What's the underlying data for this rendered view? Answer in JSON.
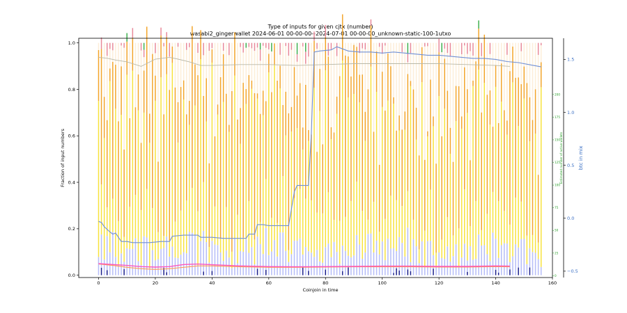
{
  "chart_data": {
    "type": "bar",
    "title": "Type of inputs for given cjtx (number)",
    "subtitle": "wasabi2_gingerwallet 2024-06-01 00-00-00--2024-07-01 00-00-00_unknown-static-100-1utxo",
    "xlabel": "Coinjoin in time",
    "ylabel": "Fraction of input numbers",
    "y2label": "Estimated number of active wallets",
    "y3label": "btc in mix",
    "xlim": [
      -7,
      160
    ],
    "ylim": [
      -0.01,
      1.02
    ],
    "y2lim": [
      -2,
      262
    ],
    "y3lim": [
      -0.56,
      1.7
    ],
    "x_ticks": [
      0,
      20,
      40,
      60,
      80,
      100,
      120,
      140,
      160
    ],
    "y_ticks": [
      0.0,
      0.2,
      0.4,
      0.6,
      0.8,
      1.0
    ],
    "y2_ticks": [
      0,
      25,
      50,
      75,
      100,
      125,
      150,
      175,
      200
    ],
    "y3_ticks": [
      -0.5,
      0.0,
      0.5,
      1.0,
      1.5
    ],
    "n_coinjoins": 157,
    "stack_colors": {
      "fresh_inputs_blue": "#b5bcf7",
      "fresh_dark": "#1a1f8c",
      "yellow": "#f7e23c",
      "orange": "#f3a52a",
      "light": "#fdeed8",
      "pink": "#e88a9a",
      "green": "#3fb04f"
    },
    "line_colors": {
      "btc_in_mix": "#6f8fd4",
      "wallets": "#b8b8a8",
      "pink_line": "#ff55bb",
      "orange_line": "#ff9955"
    },
    "btc_in_mix": {
      "x": [
        0,
        1,
        2,
        4,
        5,
        6,
        7,
        8,
        10,
        12,
        15,
        18,
        22,
        25,
        26,
        30,
        35,
        36,
        40,
        44,
        48,
        52,
        53,
        55,
        56,
        58,
        60,
        62,
        66,
        67,
        69,
        70,
        71,
        74,
        75,
        76,
        78,
        82,
        84,
        85,
        88,
        92,
        96,
        100,
        104,
        108,
        112,
        116,
        120,
        124,
        128,
        132,
        136,
        140,
        144,
        148,
        152,
        154,
        156
      ],
      "y": [
        -0.03,
        -0.04,
        -0.08,
        -0.13,
        -0.15,
        -0.14,
        -0.18,
        -0.22,
        -0.22,
        -0.23,
        -0.23,
        -0.23,
        -0.22,
        -0.22,
        -0.17,
        -0.16,
        -0.16,
        -0.18,
        -0.18,
        -0.19,
        -0.19,
        -0.19,
        -0.15,
        -0.15,
        -0.06,
        -0.06,
        -0.07,
        -0.07,
        -0.07,
        -0.07,
        0.25,
        0.31,
        0.31,
        0.31,
        0.8,
        1.57,
        1.58,
        1.59,
        1.62,
        1.61,
        1.58,
        1.57,
        1.57,
        1.56,
        1.57,
        1.56,
        1.55,
        1.54,
        1.54,
        1.53,
        1.52,
        1.51,
        1.51,
        1.5,
        1.48,
        1.47,
        1.45,
        1.44,
        1.43
      ]
    },
    "active_wallets": {
      "x": [
        0,
        3,
        6,
        10,
        15,
        20,
        25,
        28,
        32,
        36,
        40,
        50,
        60,
        70,
        80,
        90,
        100,
        110,
        120,
        130,
        140,
        145
      ],
      "y": [
        241,
        240,
        238,
        236,
        231,
        239,
        241,
        239,
        236,
        232,
        232,
        233,
        233,
        232,
        233,
        234,
        234,
        234,
        234,
        233,
        232,
        231
      ]
    },
    "pink_line": {
      "x": [
        0,
        5,
        10,
        15,
        20,
        25,
        30,
        35,
        40,
        50,
        60,
        70,
        80,
        90,
        100,
        110,
        120,
        130,
        140,
        145
      ],
      "y": [
        0.05,
        0.046,
        0.042,
        0.037,
        0.035,
        0.037,
        0.046,
        0.048,
        0.045,
        0.04,
        0.037,
        0.036,
        0.037,
        0.038,
        0.039,
        0.039,
        0.038,
        0.038,
        0.04,
        0.039
      ]
    },
    "orange_line": {
      "x": [
        0,
        5,
        10,
        15,
        20,
        25,
        30,
        35,
        40,
        50,
        60,
        70,
        80,
        90,
        100,
        110,
        120,
        130,
        140,
        145
      ],
      "y": [
        0.048,
        0.042,
        0.034,
        0.028,
        0.025,
        0.028,
        0.034,
        0.04,
        0.04,
        0.036,
        0.034,
        0.034,
        0.035,
        0.036,
        0.036,
        0.036,
        0.035,
        0.035,
        0.037,
        0.036
      ]
    }
  }
}
